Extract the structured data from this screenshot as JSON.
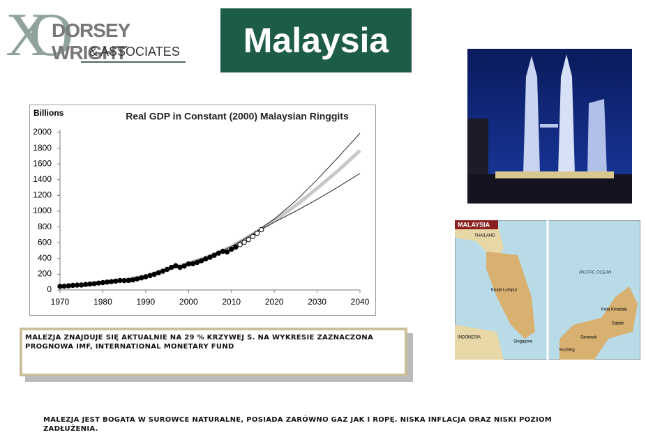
{
  "logo": {
    "mark": "XO",
    "name": "DORSEY WRIGHT",
    "sub": "& ASSOCIATES"
  },
  "title": "Malaysia",
  "chart_data": {
    "type": "line",
    "title": "Real GDP in Constant (2000) Malaysian Ringgits",
    "y_label": "Billions",
    "xlim": [
      1970,
      2040
    ],
    "xticks": [
      1970,
      1980,
      1990,
      2000,
      2010,
      2020,
      2030,
      2040
    ],
    "ylim": [
      0,
      2000
    ],
    "yticks": [
      0,
      200,
      400,
      600,
      800,
      1000,
      1200,
      1400,
      1600,
      1800,
      2000
    ],
    "series": [
      {
        "style": "band",
        "color": "#c8c8c8",
        "x": [
          1970,
          1975,
          1980,
          1985,
          1990,
          1995,
          2000,
          2005,
          2010,
          2015,
          2020,
          2025,
          2030,
          2035,
          2040
        ],
        "values": [
          40,
          60,
          95,
          130,
          180,
          260,
          340,
          430,
          550,
          710,
          880,
          1070,
          1290,
          1520,
          1770
        ]
      },
      {
        "style": "line",
        "color": "#222222",
        "x": [
          1970,
          1975,
          1980,
          1985,
          1990,
          1995,
          2000,
          2005,
          2010,
          2015
        ],
        "values": [
          40,
          60,
          95,
          130,
          180,
          260,
          340,
          430,
          550,
          710
        ]
      },
      {
        "style": "line",
        "color": "#222222",
        "x": [
          2015,
          2020,
          2025,
          2030,
          2035,
          2040
        ],
        "values": [
          710,
          900,
          1130,
          1400,
          1690,
          1990
        ]
      },
      {
        "style": "line",
        "color": "#222222",
        "x": [
          2015,
          2020,
          2025,
          2030,
          2035,
          2040
        ],
        "values": [
          710,
          860,
          1000,
          1150,
          1310,
          1480
        ]
      },
      {
        "style": "dots",
        "color": "#000000",
        "x": [
          1970,
          1971,
          1972,
          1973,
          1974,
          1975,
          1976,
          1977,
          1978,
          1979,
          1980,
          1981,
          1982,
          1983,
          1984,
          1985,
          1986,
          1987,
          1988,
          1989,
          1990,
          1991,
          1992,
          1993,
          1994,
          1995,
          1996,
          1997,
          1998,
          1999,
          2000,
          2001,
          2002,
          2003,
          2004,
          2005,
          2006,
          2007,
          2008,
          2009,
          2010,
          2011
        ],
        "values": [
          45,
          48,
          52,
          58,
          62,
          63,
          70,
          75,
          80,
          87,
          93,
          100,
          106,
          112,
          120,
          118,
          120,
          127,
          140,
          153,
          167,
          182,
          198,
          218,
          238,
          261,
          287,
          308,
          286,
          303,
          330,
          332,
          350,
          370,
          395,
          415,
          440,
          467,
          490,
          482,
          517,
          544
        ]
      },
      {
        "style": "open-dots",
        "color": "#000000",
        "x": [
          2012,
          2013,
          2014,
          2015,
          2016,
          2017
        ],
        "values": [
          575,
          605,
          640,
          680,
          720,
          765
        ]
      }
    ]
  },
  "note_box": "MALEZJA ZNAJDUJE SIĘ AKTUALNIE NA 29 % KRZYWEJ S. NA WYKRESIE ZAZNACZONA PROGNOWA IMF, INTERNATIONAL MONETARY FUND",
  "footer": "MALEZJA JEST BOGATA W SUROWCE NATURALNE, POSIADA ZARÓWNO GAZ JAK I ROPĘ. NISKA INFLACJA ORAZ NISKI POZIOM ZADŁUŻENIA.",
  "map": {
    "title": "MALAYSIA",
    "labels": [
      "THAILAND",
      "Kuala Lumpur",
      "Singapore",
      "INDONESIA",
      "PACIFIC OCEAN",
      "Kota Kinabalu",
      "Sabah",
      "Sarawak",
      "Kuching"
    ]
  }
}
